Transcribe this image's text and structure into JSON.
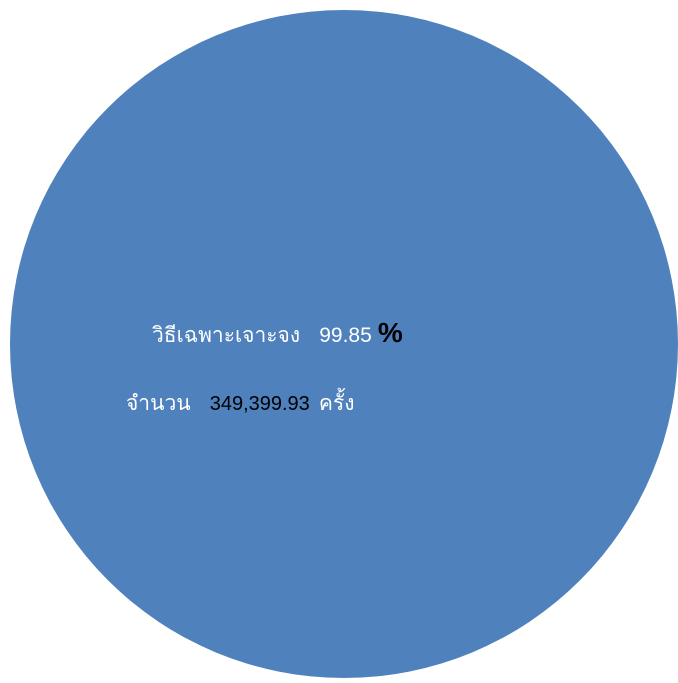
{
  "chart_data": {
    "type": "pie",
    "slices": [
      {
        "name": "วิธีเฉพาะเจาะจง",
        "percent": 99.85,
        "percent_label": "99.85",
        "percent_sign": "%",
        "count_prefix": "จำนวน",
        "count_value": "349,399.93",
        "count_unit": "ครั้ง",
        "color": "#4f81bd"
      }
    ],
    "legend": "none"
  }
}
